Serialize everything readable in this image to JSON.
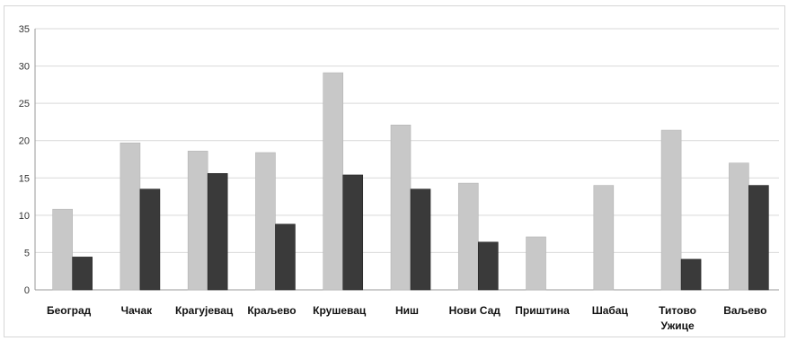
{
  "chart_data": {
    "type": "bar",
    "title": "",
    "xlabel": "",
    "ylabel": "",
    "ylim": [
      0,
      35
    ],
    "yticks": [
      "0",
      "5",
      "10",
      "15",
      "20",
      "25",
      "30",
      "35"
    ],
    "grid": true,
    "legend": "none",
    "categories": [
      [
        "Београд"
      ],
      [
        "Чачак"
      ],
      [
        "Крагујевац"
      ],
      [
        "Краљево"
      ],
      [
        "Крушевац"
      ],
      [
        "Ниш"
      ],
      [
        "Нови Сад"
      ],
      [
        "Приштина"
      ],
      [
        "Шабац"
      ],
      [
        "Титово",
        "Ужице"
      ],
      [
        "Ваљево"
      ]
    ],
    "series": [
      {
        "color": "#c8c8c8",
        "values": [
          10.8,
          19.7,
          18.6,
          18.4,
          29.1,
          22.1,
          14.3,
          7.1,
          14.0,
          21.4,
          17.0
        ]
      },
      {
        "color": "#3a3a3a",
        "values": [
          4.4,
          13.5,
          15.6,
          8.8,
          15.4,
          13.5,
          6.4,
          0,
          0,
          4.1,
          14.0
        ]
      }
    ]
  }
}
